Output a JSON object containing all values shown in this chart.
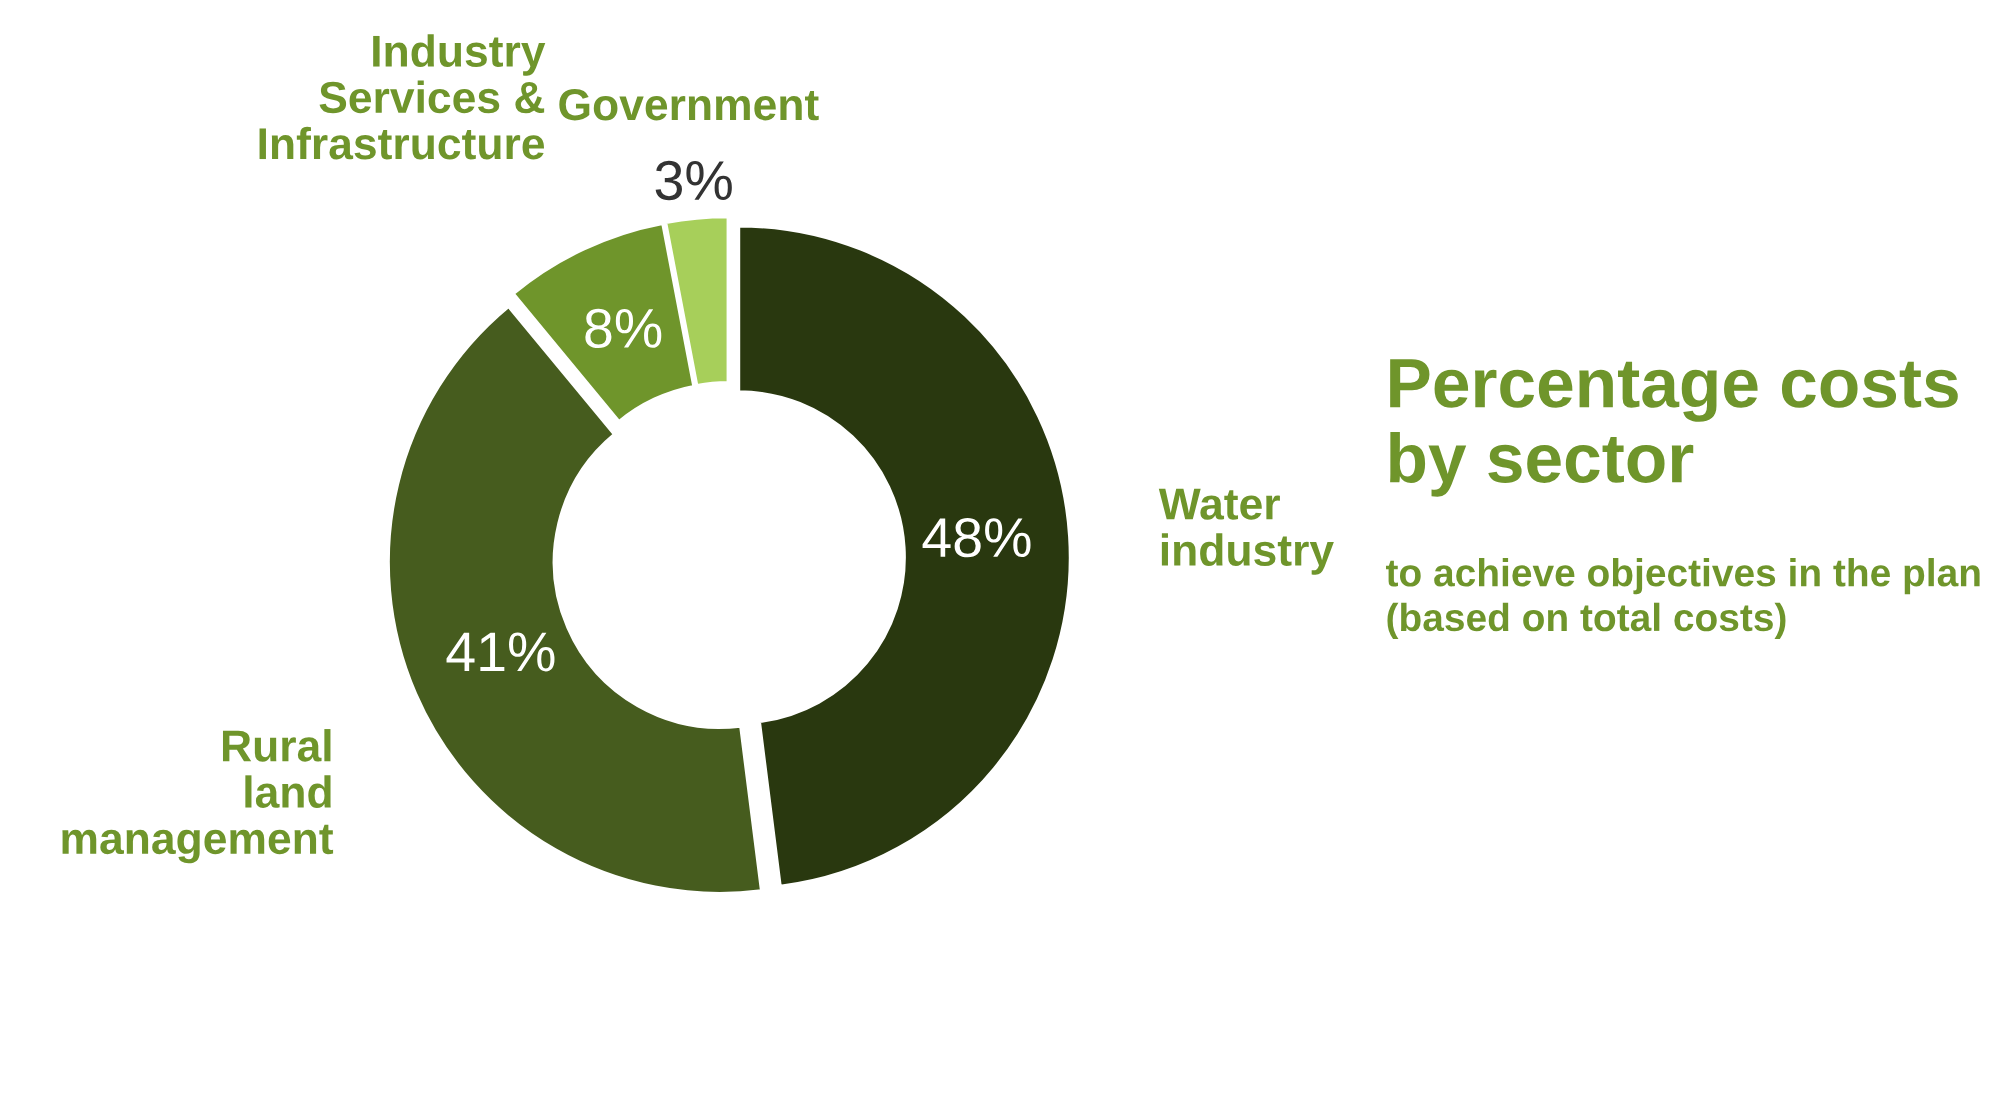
{
  "chart_data": {
    "type": "donut",
    "title": "Percentage costs by sector",
    "subtitle": "to achieve objectives in the plan (based on total costs)",
    "categories": [
      "Water\nindustry",
      "Rural\nland\nmanagement",
      "Industry\nServices &\nInfrastructure",
      "Government"
    ],
    "values": [
      48,
      41,
      8,
      3
    ],
    "colors": [
      "#29380f",
      "#465c1e",
      "#6f952b",
      "#a7cf5a"
    ],
    "value_labels": [
      "48%",
      "41%",
      "8%",
      "3%"
    ],
    "legend": false
  }
}
